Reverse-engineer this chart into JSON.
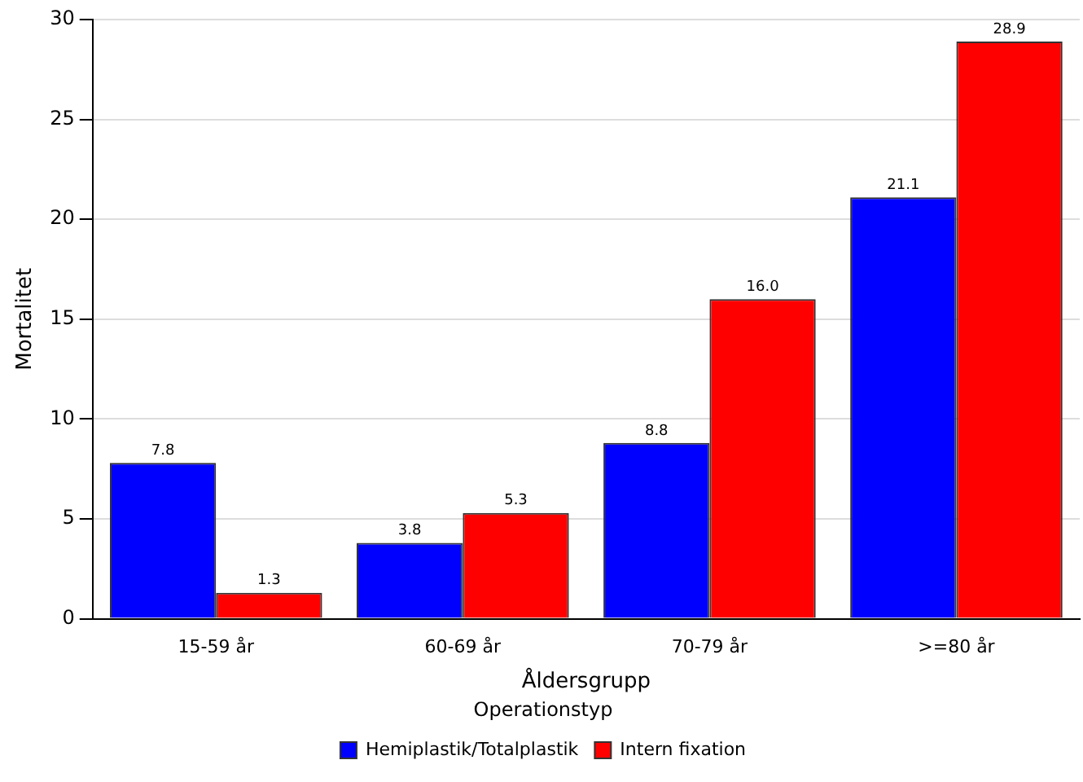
{
  "chart_data": {
    "type": "bar",
    "xlabel": "Åldersgrupp",
    "ylabel": "Mortalitet",
    "legend_title": "Operationstyp",
    "categories": [
      "15-59 år",
      "60-69 år",
      "70-79 år",
      ">=80 år"
    ],
    "series": [
      {
        "name": "Hemiplastik/Totalplastik",
        "color": "#0000ff",
        "values": [
          7.8,
          3.8,
          8.8,
          21.1
        ],
        "value_labels": [
          "7.8",
          "3.8",
          "8.8",
          "21.1"
        ]
      },
      {
        "name": "Intern fixation",
        "color": "#ff0000",
        "values": [
          1.3,
          5.3,
          16.0,
          28.9
        ],
        "value_labels": [
          "1.3",
          "5.3",
          "16.0",
          "28.9"
        ]
      }
    ],
    "ylim": [
      0,
      30
    ],
    "yticks": [
      0,
      5,
      10,
      15,
      20,
      25,
      30
    ],
    "grid": "y",
    "legend": "bottom"
  }
}
